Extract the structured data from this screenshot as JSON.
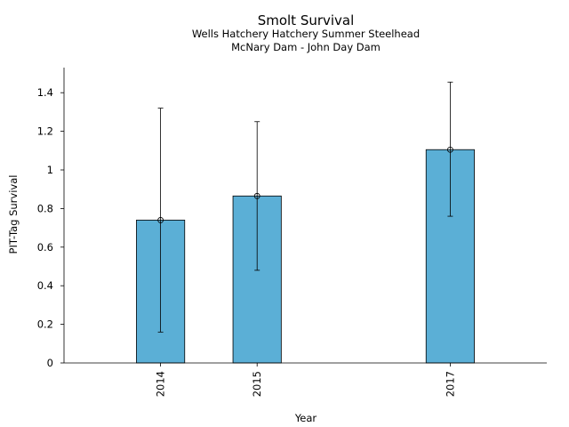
{
  "chart_data": {
    "type": "bar",
    "title": "Smolt Survival",
    "subtitle_lines": [
      "Wells Hatchery Hatchery Summer Steelhead",
      "McNary Dam - John Day Dam"
    ],
    "xlabel": "Year",
    "ylabel": "PIT-Tag Survival",
    "x_domain": [
      2013,
      2018
    ],
    "ylim": [
      0,
      1.53
    ],
    "y_ticks": [
      {
        "value": 0,
        "label": "0"
      },
      {
        "value": 0.2,
        "label": "0.2"
      },
      {
        "value": 0.4,
        "label": "0.4"
      },
      {
        "value": 0.6,
        "label": "0.6"
      },
      {
        "value": 0.8,
        "label": "0.8"
      },
      {
        "value": 1.0,
        "label": "1"
      },
      {
        "value": 1.2,
        "label": "1.2"
      },
      {
        "value": 1.4,
        "label": "1.4"
      }
    ],
    "bars": [
      {
        "year": 2014,
        "label": "2014",
        "value": 0.74,
        "lower": 0.16,
        "upper": 1.32
      },
      {
        "year": 2015,
        "label": "2015",
        "value": 0.865,
        "lower": 0.48,
        "upper": 1.25
      },
      {
        "year": 2017,
        "label": "2017",
        "value": 1.105,
        "lower": 0.76,
        "upper": 1.455
      }
    ],
    "bar_width_years": 0.5,
    "grid": false,
    "colors": {
      "bar_fill": "#5BAFD6",
      "bar_stroke": "#000000"
    }
  }
}
